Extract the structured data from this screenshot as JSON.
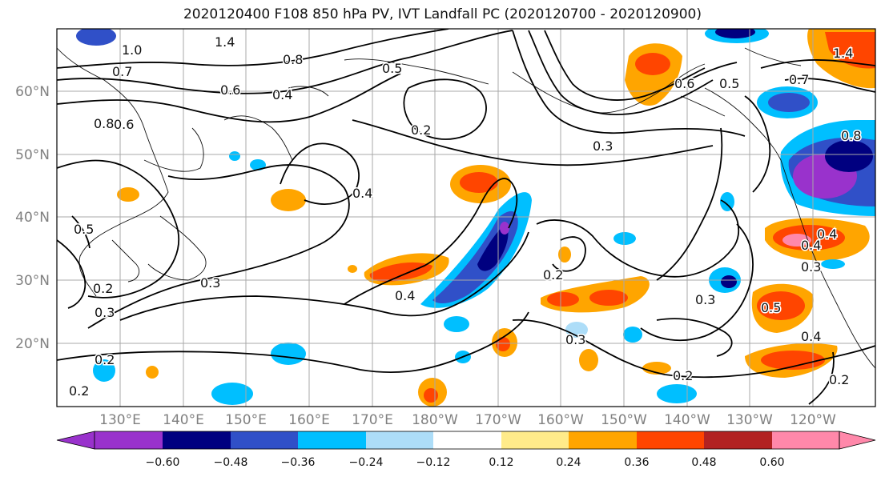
{
  "title": "2020120400 F108 850 hPa PV, IVT Landfall PC (2020120700 - 2020120900)",
  "lat_ticks": [
    "60°N",
    "50°N",
    "40°N",
    "30°N",
    "20°N"
  ],
  "lon_ticks": [
    "130°E",
    "140°E",
    "150°E",
    "160°E",
    "170°E",
    "180°W",
    "170°W",
    "160°W",
    "150°W",
    "140°W",
    "130°W",
    "120°W"
  ],
  "colorbar": {
    "colors": [
      "#9932CC",
      "#000080",
      "#3050C8",
      "#00BFFF",
      "#ADDDF8",
      "#FFFFFF",
      "#FFEB8A",
      "#FFA500",
      "#FF4500",
      "#B22222",
      "#FF88AA"
    ],
    "labels": [
      "−0.60",
      "−0.48",
      "−0.36",
      "−0.24",
      "−0.12",
      "0.12",
      "0.24",
      "0.36",
      "0.48",
      "0.60"
    ]
  },
  "contour_labels": [
    {
      "text": "1.0"
    },
    {
      "text": "1.4"
    },
    {
      "text": "0.7"
    },
    {
      "text": "0.8"
    },
    {
      "text": "0.6"
    },
    {
      "text": "0.4"
    },
    {
      "text": "0.5"
    },
    {
      "text": "0.2"
    },
    {
      "text": "0.3"
    },
    {
      "text": "0.4"
    },
    {
      "text": "0.6"
    },
    {
      "text": "0.5"
    },
    {
      "text": "0.7"
    },
    {
      "text": "1.4"
    },
    {
      "text": "0.8"
    },
    {
      "text": "0.6"
    },
    {
      "text": "0.5"
    },
    {
      "text": "0.3"
    },
    {
      "text": "0.2"
    },
    {
      "text": "0.3"
    },
    {
      "text": "0.4"
    },
    {
      "text": "0.2"
    },
    {
      "text": "0.3"
    },
    {
      "text": "0.4"
    },
    {
      "text": "0.3"
    },
    {
      "text": "0.5"
    },
    {
      "text": "0.4"
    },
    {
      "text": "0.2"
    },
    {
      "text": "0.2"
    },
    {
      "text": "0.3"
    },
    {
      "text": "0.4"
    },
    {
      "text": "0.2"
    },
    {
      "text": "0.8"
    },
    {
      "text": "0.2"
    }
  ]
}
